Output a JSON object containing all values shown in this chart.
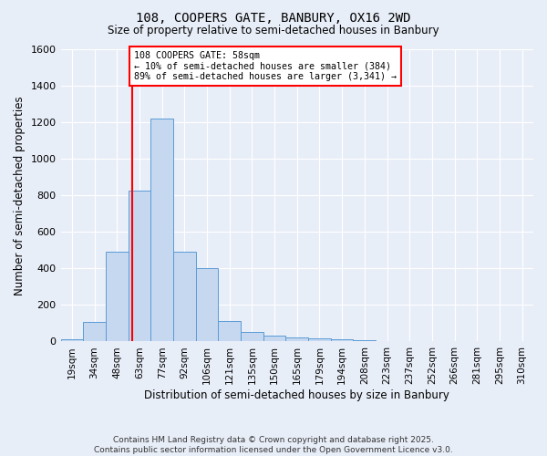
{
  "title1": "108, COOPERS GATE, BANBURY, OX16 2WD",
  "title2": "Size of property relative to semi-detached houses in Banbury",
  "xlabel": "Distribution of semi-detached houses by size in Banbury",
  "ylabel": "Number of semi-detached properties",
  "bin_labels": [
    "19sqm",
    "34sqm",
    "48sqm",
    "63sqm",
    "77sqm",
    "92sqm",
    "106sqm",
    "121sqm",
    "135sqm",
    "150sqm",
    "165sqm",
    "179sqm",
    "194sqm",
    "208sqm",
    "223sqm",
    "237sqm",
    "252sqm",
    "266sqm",
    "281sqm",
    "295sqm",
    "310sqm"
  ],
  "bar_heights": [
    10,
    105,
    490,
    825,
    1220,
    490,
    400,
    110,
    50,
    30,
    20,
    15,
    10,
    5,
    0,
    0,
    0,
    0,
    0,
    0,
    0
  ],
  "bar_color": "#c5d8f0",
  "bar_edge_color": "#5b9bd5",
  "vline_color": "red",
  "annotation_text": "108 COOPERS GATE: 58sqm\n← 10% of semi-detached houses are smaller (384)\n89% of semi-detached houses are larger (3,341) →",
  "annotation_box_color": "white",
  "annotation_box_edge_color": "red",
  "ylim": [
    0,
    1600
  ],
  "yticks": [
    0,
    200,
    400,
    600,
    800,
    1000,
    1200,
    1400,
    1600
  ],
  "footnote": "Contains HM Land Registry data © Crown copyright and database right 2025.\nContains public sector information licensed under the Open Government Licence v3.0.",
  "background_color": "#e8eef8",
  "grid_color": "white"
}
